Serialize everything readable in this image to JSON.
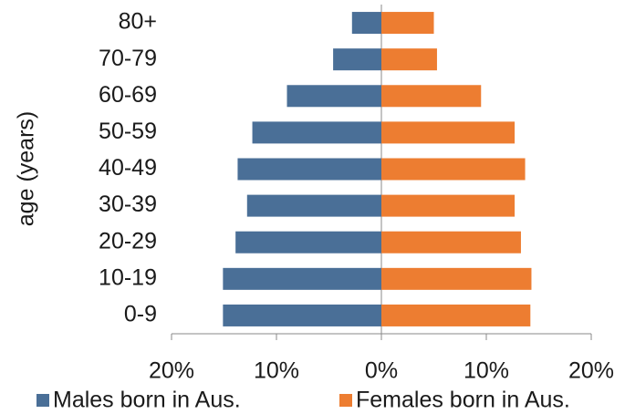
{
  "chart_data": {
    "type": "bar",
    "orientation": "horizontal",
    "stacked": true,
    "y_axis_label": "age (years)",
    "categories": [
      "0-9",
      "10-19",
      "20-29",
      "30-39",
      "40-49",
      "50-59",
      "60-69",
      "70-79",
      "80+"
    ],
    "series": [
      {
        "name": "Males born in Aus.",
        "color": "#4a6f97",
        "values": [
          -15.1,
          -15.1,
          -13.9,
          -12.8,
          -13.7,
          -12.3,
          -9.0,
          -4.6,
          -2.8
        ]
      },
      {
        "name": "Females born in Aus.",
        "color": "#ed7d31",
        "values": [
          14.2,
          14.3,
          13.3,
          12.7,
          13.7,
          12.7,
          9.5,
          5.3,
          5.0
        ]
      }
    ],
    "xlim": [
      -20,
      20
    ],
    "xticks": [
      {
        "value": -20,
        "label": "20%"
      },
      {
        "value": -10,
        "label": "10%"
      },
      {
        "value": 0,
        "label": "0%"
      },
      {
        "value": 10,
        "label": "10%"
      },
      {
        "value": 20,
        "label": "20%"
      }
    ],
    "grid": false,
    "legend": "bottom"
  }
}
